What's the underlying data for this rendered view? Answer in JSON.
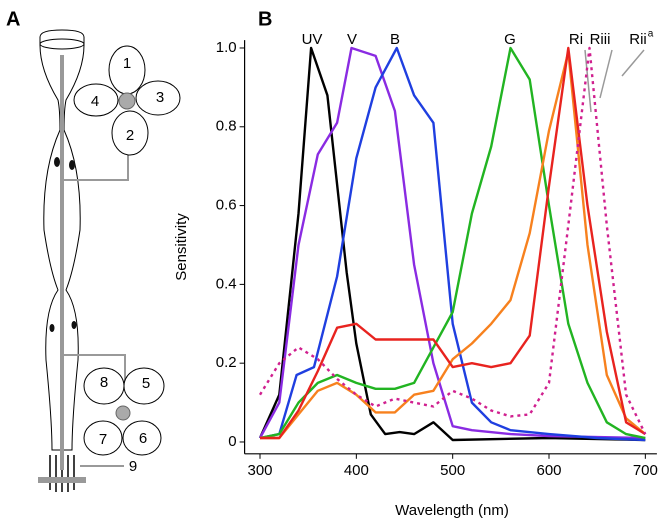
{
  "diagram": {
    "panel_label": "A",
    "labels": [
      "1",
      "2",
      "3",
      "4",
      "5",
      "6",
      "7",
      "8",
      "9"
    ]
  },
  "chart_data": {
    "type": "line",
    "panel_label": "B",
    "xlabel": "Wavelength (nm)",
    "ylabel": "Sensitivity",
    "xlim": [
      284,
      712
    ],
    "ylim": [
      -0.03,
      1.02
    ],
    "xticks": [
      300,
      400,
      500,
      600,
      700
    ],
    "yticks": [
      0,
      0.2,
      0.4,
      0.6,
      0.8,
      {
        "value": 1,
        "label": "1.0"
      }
    ],
    "series": [
      {
        "name": "UV",
        "color": "#000000",
        "x": [
          300,
          320,
          340,
          353,
          370,
          390,
          400,
          415,
          430,
          445,
          460,
          480,
          500,
          600,
          700
        ],
        "values": [
          0.01,
          0.12,
          0.58,
          1.0,
          0.88,
          0.43,
          0.25,
          0.07,
          0.02,
          0.025,
          0.02,
          0.05,
          0.005,
          0.01,
          0.005
        ]
      },
      {
        "name": "V",
        "color": "#8a2be2",
        "x": [
          300,
          320,
          340,
          360,
          380,
          395,
          420,
          440,
          460,
          480,
          500,
          520,
          560,
          600,
          700
        ],
        "values": [
          0.01,
          0.1,
          0.5,
          0.73,
          0.81,
          1.0,
          0.98,
          0.84,
          0.45,
          0.2,
          0.04,
          0.03,
          0.02,
          0.015,
          0.01
        ]
      },
      {
        "name": "B",
        "color": "#1f3fe0",
        "x": [
          300,
          320,
          338,
          356,
          380,
          400,
          420,
          442,
          460,
          480,
          500,
          520,
          540,
          560,
          600,
          650,
          700
        ],
        "values": [
          0.01,
          0.02,
          0.17,
          0.19,
          0.42,
          0.72,
          0.9,
          1.0,
          0.88,
          0.81,
          0.3,
          0.1,
          0.05,
          0.03,
          0.02,
          0.01,
          0.005
        ]
      },
      {
        "name": "G",
        "color": "#22b422",
        "x": [
          300,
          320,
          340,
          360,
          380,
          400,
          420,
          440,
          460,
          480,
          500,
          520,
          540,
          560,
          580,
          600,
          620,
          640,
          660,
          680,
          700
        ],
        "values": [
          0.01,
          0.02,
          0.1,
          0.15,
          0.17,
          0.15,
          0.135,
          0.135,
          0.15,
          0.24,
          0.33,
          0.58,
          0.75,
          1.0,
          0.92,
          0.6,
          0.3,
          0.15,
          0.05,
          0.02,
          0.01
        ]
      },
      {
        "name": "Ri",
        "color": "#f7811e",
        "x": [
          300,
          320,
          340,
          360,
          380,
          400,
          420,
          440,
          460,
          480,
          500,
          520,
          540,
          560,
          580,
          600,
          620,
          640,
          660,
          680,
          700
        ],
        "values": [
          0.01,
          0.01,
          0.07,
          0.13,
          0.15,
          0.12,
          0.075,
          0.075,
          0.12,
          0.13,
          0.21,
          0.25,
          0.3,
          0.36,
          0.53,
          0.79,
          0.99,
          0.5,
          0.17,
          0.06,
          0.02
        ]
      },
      {
        "name": "Riii",
        "color": "#e8231f",
        "x": [
          300,
          320,
          340,
          360,
          380,
          400,
          420,
          440,
          460,
          480,
          500,
          520,
          540,
          560,
          580,
          600,
          620,
          640,
          660,
          680,
          700
        ],
        "values": [
          0.01,
          0.01,
          0.08,
          0.18,
          0.29,
          0.3,
          0.26,
          0.26,
          0.26,
          0.26,
          0.19,
          0.2,
          0.19,
          0.2,
          0.27,
          0.65,
          1.0,
          0.6,
          0.28,
          0.05,
          0.02
        ]
      },
      {
        "name": "Rii",
        "name_superscript": "a",
        "color": "#d0208f",
        "dashed": true,
        "x": [
          300,
          320,
          340,
          360,
          380,
          400,
          420,
          440,
          460,
          480,
          500,
          520,
          540,
          560,
          580,
          600,
          620,
          642,
          660,
          680,
          700
        ],
        "values": [
          0.12,
          0.2,
          0.24,
          0.21,
          0.16,
          0.12,
          0.09,
          0.11,
          0.1,
          0.09,
          0.13,
          0.11,
          0.08,
          0.065,
          0.07,
          0.15,
          0.55,
          1.0,
          0.55,
          0.12,
          0.02
        ]
      }
    ]
  }
}
